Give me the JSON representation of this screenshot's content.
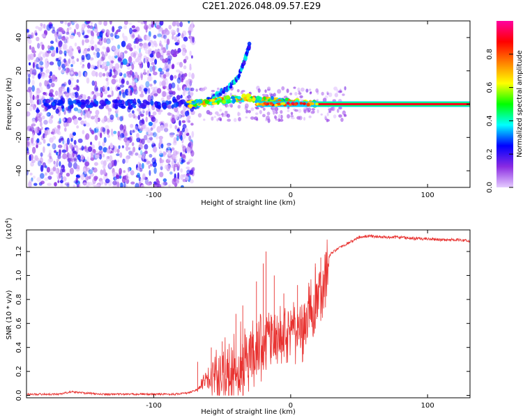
{
  "chart_data": [
    {
      "type": "heatmap",
      "title": "C2E1.2026.048.09.57.E29",
      "xlabel": "Height of straight line (km)",
      "ylabel": "Frequency (Hz)",
      "xlim": [
        -193,
        131
      ],
      "ylim": [
        -50,
        50
      ],
      "x_ticks": [
        -100,
        0,
        100
      ],
      "x_tick_labels": [
        "-100",
        "0",
        "100"
      ],
      "y_ticks": [
        -40,
        -20,
        0,
        20,
        40
      ],
      "y_tick_labels": [
        "-40",
        "-20",
        "0",
        "20",
        "40"
      ],
      "colorbar": {
        "label": "Normalized spectral amplitude",
        "range": [
          0,
          1
        ],
        "ticks": [
          0.0,
          0.2,
          0.4,
          0.6,
          0.8
        ],
        "tick_labels": [
          "0.0",
          "0.2",
          "0.4",
          "0.6",
          "0.8"
        ],
        "colors": [
          "#e6ccff",
          "#8a2be2",
          "#0000ff",
          "#00ffff",
          "#00ff00",
          "#ffff00",
          "#ff8000",
          "#ff0000",
          "#ff00a0"
        ]
      },
      "features": {
        "noise_region_x": [
          -193,
          -75
        ],
        "signal_line_frequency": 0,
        "strong_line_start_x": 20,
        "rising_branch": [
          {
            "x": -70,
            "freq": -2
          },
          {
            "x": -55,
            "freq": 5
          },
          {
            "x": -45,
            "freq": 10
          },
          {
            "x": -38,
            "freq": 17
          },
          {
            "x": -33,
            "freq": 28
          },
          {
            "x": -30,
            "freq": 36
          }
        ]
      }
    },
    {
      "type": "line",
      "xlabel": "Height of straight line (km)",
      "ylabel": "SNR (10 * v/v)",
      "scale_label": "(x10",
      "scale_exponent": "4",
      "scale_close": ")",
      "xlim": [
        -193,
        131
      ],
      "ylim": [
        -0.02,
        1.38
      ],
      "x_ticks": [
        -100,
        0,
        100
      ],
      "x_tick_labels": [
        "-100",
        "0",
        "100"
      ],
      "y_ticks": [
        0.0,
        0.2,
        0.4,
        0.6,
        0.8,
        1.0,
        1.2
      ],
      "y_tick_labels": [
        "0.0",
        "0.2",
        "0.4",
        "0.6",
        "0.8",
        "1.0",
        "1.2"
      ],
      "series": [
        {
          "name": "SNR",
          "color": "#e8312f",
          "x": [
            -193,
            -170,
            -160,
            -140,
            -120,
            -100,
            -85,
            -75,
            -68,
            -65,
            -60,
            -55,
            -50,
            -45,
            -40,
            -35,
            -30,
            -25,
            -20,
            -15,
            -10,
            -5,
            0,
            5,
            10,
            15,
            20,
            25,
            30,
            35,
            40,
            45,
            50,
            55,
            60,
            70,
            80,
            90,
            100,
            110,
            120,
            131
          ],
          "values": [
            0.01,
            0.01,
            0.03,
            0.01,
            0.01,
            0.01,
            0.01,
            0.02,
            0.05,
            0.12,
            0.2,
            0.25,
            0.28,
            0.32,
            0.38,
            0.43,
            0.48,
            0.52,
            0.55,
            0.58,
            0.6,
            0.62,
            0.65,
            0.7,
            0.75,
            0.85,
            0.98,
            1.12,
            1.2,
            1.24,
            1.27,
            1.3,
            1.33,
            1.34,
            1.34,
            1.33,
            1.33,
            1.32,
            1.32,
            1.31,
            1.31,
            1.3
          ]
        }
      ],
      "spikes": [
        {
          "x": -68,
          "y": 0.28
        },
        {
          "x": -58,
          "y": 0.4
        },
        {
          "x": -50,
          "y": 0.45
        },
        {
          "x": -40,
          "y": 0.68
        },
        {
          "x": -35,
          "y": 0.75
        },
        {
          "x": -25,
          "y": 0.95
        },
        {
          "x": -20,
          "y": 1.1
        },
        {
          "x": -18,
          "y": 1.2
        },
        {
          "x": -12,
          "y": 1.0
        },
        {
          "x": -5,
          "y": 0.85
        },
        {
          "x": 5,
          "y": 0.92
        },
        {
          "x": 18,
          "y": 1.1
        },
        {
          "x": 22,
          "y": 1.15
        }
      ]
    }
  ]
}
